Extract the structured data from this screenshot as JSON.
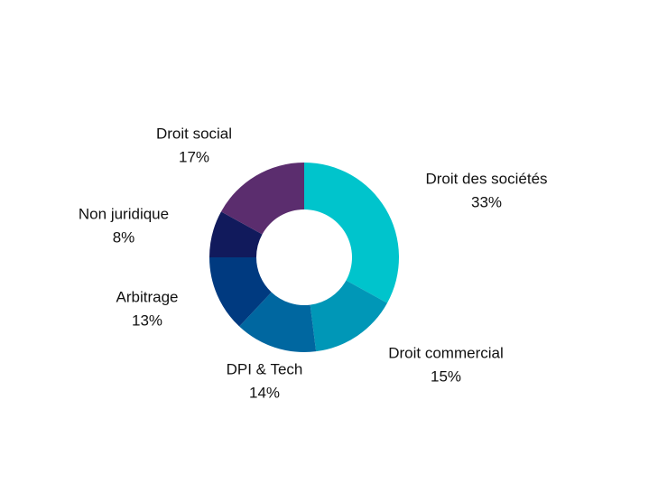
{
  "chart_data": {
    "type": "pie",
    "variant": "donut",
    "title": "",
    "start_direction": "top",
    "direction": "clockwise",
    "slices": [
      {
        "label": "Droit des sociétés",
        "value": 33,
        "value_label": "33%",
        "color": "#00c4cc"
      },
      {
        "label": "Droit commercial",
        "value": 15,
        "value_label": "15%",
        "color": "#0097b7"
      },
      {
        "label": "DPI & Tech",
        "value": 14,
        "value_label": "14%",
        "color": "#0067a0"
      },
      {
        "label": "Arbitrage",
        "value": 13,
        "value_label": "13%",
        "color": "#003a80"
      },
      {
        "label": "Non juridique",
        "value": 8,
        "value_label": "8%",
        "color": "#111a5c"
      },
      {
        "label": "Droit social",
        "value": 17,
        "value_label": "17%",
        "color": "#5b2d6e"
      }
    ]
  }
}
